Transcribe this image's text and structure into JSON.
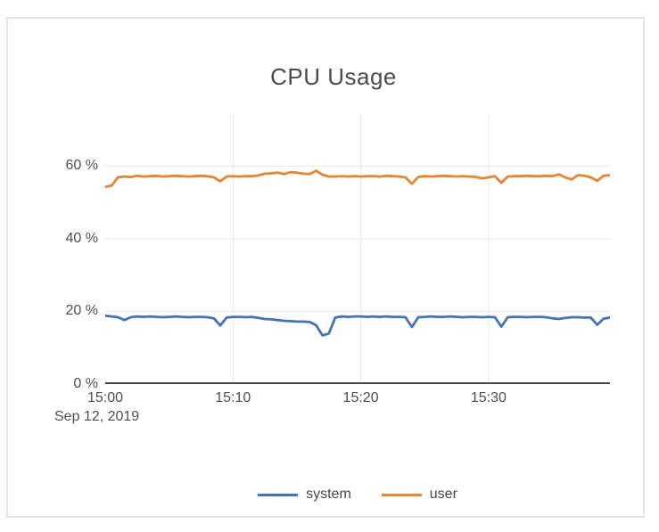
{
  "card": {
    "background": "#ffffff",
    "border_color": "#e4e4e4"
  },
  "chart_data": {
    "type": "line",
    "title": "CPU Usage",
    "date_label": "Sep 12, 2019",
    "grid": true,
    "grid_color": "#e7e7e7",
    "axis_color": "#47474a",
    "legend_position": "bottom-center",
    "xlabel": "",
    "ylabel": "",
    "x_unit": "time (HH:MM)",
    "y_unit": "percent",
    "x_start_minutes": 0,
    "x_step_minutes": 0.5,
    "x_range_minutes": [
      0,
      39.5
    ],
    "ylim": [
      0,
      74.3
    ],
    "x_ticks": [
      {
        "label": "15:00",
        "minutes": 0
      },
      {
        "label": "15:10",
        "minutes": 10
      },
      {
        "label": "15:20",
        "minutes": 20
      },
      {
        "label": "15:30",
        "minutes": 30
      }
    ],
    "y_ticks": [
      {
        "label": "0 %",
        "value": 0
      },
      {
        "label": "20 %",
        "value": 20
      },
      {
        "label": "40 %",
        "value": 40
      },
      {
        "label": "60 %",
        "value": 60
      }
    ],
    "series": [
      {
        "name": "system",
        "color": "#4472b8",
        "values": [
          18.8,
          18.6,
          18.4,
          17.6,
          18.4,
          18.6,
          18.5,
          18.6,
          18.5,
          18.4,
          18.5,
          18.6,
          18.5,
          18.4,
          18.5,
          18.5,
          18.4,
          18.1,
          16.1,
          18.3,
          18.5,
          18.5,
          18.4,
          18.5,
          18.2,
          17.9,
          17.8,
          17.6,
          17.4,
          17.3,
          17.2,
          17.2,
          17.1,
          16.2,
          13.4,
          13.9,
          18.3,
          18.6,
          18.5,
          18.6,
          18.6,
          18.5,
          18.6,
          18.5,
          18.6,
          18.5,
          18.5,
          18.4,
          15.7,
          18.4,
          18.5,
          18.6,
          18.5,
          18.5,
          18.6,
          18.5,
          18.4,
          18.5,
          18.5,
          18.4,
          18.5,
          18.4,
          15.8,
          18.4,
          18.5,
          18.5,
          18.4,
          18.5,
          18.5,
          18.4,
          18.1,
          17.9,
          18.2,
          18.4,
          18.4,
          18.3,
          18.3,
          16.3,
          18.0,
          18.3
        ]
      },
      {
        "name": "user",
        "color": "#e48535",
        "values": [
          54.3,
          54.6,
          56.9,
          57.1,
          57.0,
          57.3,
          57.1,
          57.2,
          57.3,
          57.1,
          57.2,
          57.3,
          57.2,
          57.1,
          57.2,
          57.3,
          57.2,
          56.9,
          55.8,
          57.1,
          57.2,
          57.1,
          57.2,
          57.2,
          57.4,
          57.9,
          58.0,
          58.2,
          57.8,
          58.3,
          58.2,
          57.9,
          57.8,
          58.7,
          57.6,
          57.1,
          57.1,
          57.2,
          57.1,
          57.2,
          57.1,
          57.2,
          57.2,
          57.1,
          57.3,
          57.2,
          57.1,
          56.9,
          55.1,
          57.0,
          57.2,
          57.1,
          57.2,
          57.3,
          57.2,
          57.1,
          57.2,
          57.1,
          57.0,
          56.6,
          56.9,
          57.2,
          55.4,
          57.1,
          57.2,
          57.2,
          57.3,
          57.2,
          57.2,
          57.3,
          57.2,
          57.7,
          56.9,
          56.3,
          57.5,
          57.3,
          56.9,
          55.9,
          57.3,
          57.5
        ]
      }
    ]
  }
}
